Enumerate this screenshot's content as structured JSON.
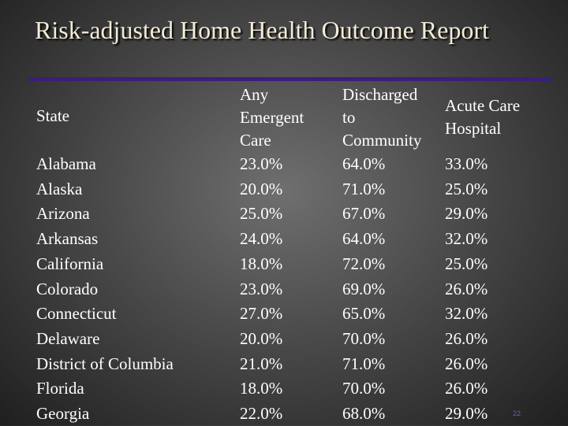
{
  "title": "Risk-adjusted Home Health Outcome Report",
  "columns": {
    "state": "State",
    "any_emergent_care": [
      "Any",
      "Emergent",
      "Care"
    ],
    "discharged_to_community": [
      "Discharged",
      "to",
      "Community"
    ],
    "acute_care_hospital": [
      "Acute Care",
      "Hospital"
    ]
  },
  "rows": [
    {
      "state": "Alabama",
      "any_emergent_care": "23.0%",
      "discharged_to_community": "64.0%",
      "acute_care_hospital": "33.0%"
    },
    {
      "state": "Alaska",
      "any_emergent_care": "20.0%",
      "discharged_to_community": "71.0%",
      "acute_care_hospital": "25.0%"
    },
    {
      "state": "Arizona",
      "any_emergent_care": "25.0%",
      "discharged_to_community": "67.0%",
      "acute_care_hospital": "29.0%"
    },
    {
      "state": "Arkansas",
      "any_emergent_care": "24.0%",
      "discharged_to_community": "64.0%",
      "acute_care_hospital": "32.0%"
    },
    {
      "state": "California",
      "any_emergent_care": "18.0%",
      "discharged_to_community": "72.0%",
      "acute_care_hospital": "25.0%"
    },
    {
      "state": "Colorado",
      "any_emergent_care": "23.0%",
      "discharged_to_community": "69.0%",
      "acute_care_hospital": "26.0%"
    },
    {
      "state": "Connecticut",
      "any_emergent_care": "27.0%",
      "discharged_to_community": "65.0%",
      "acute_care_hospital": "32.0%"
    },
    {
      "state": "Delaware",
      "any_emergent_care": "20.0%",
      "discharged_to_community": "70.0%",
      "acute_care_hospital": "26.0%"
    },
    {
      "state": "District of Columbia",
      "any_emergent_care": "21.0%",
      "discharged_to_community": "71.0%",
      "acute_care_hospital": "26.0%"
    },
    {
      "state": "Florida",
      "any_emergent_care": "18.0%",
      "discharged_to_community": "70.0%",
      "acute_care_hospital": "26.0%"
    },
    {
      "state": "Georgia",
      "any_emergent_care": "22.0%",
      "discharged_to_community": "68.0%",
      "acute_care_hospital": "29.0%"
    }
  ],
  "slide_number": "22"
}
